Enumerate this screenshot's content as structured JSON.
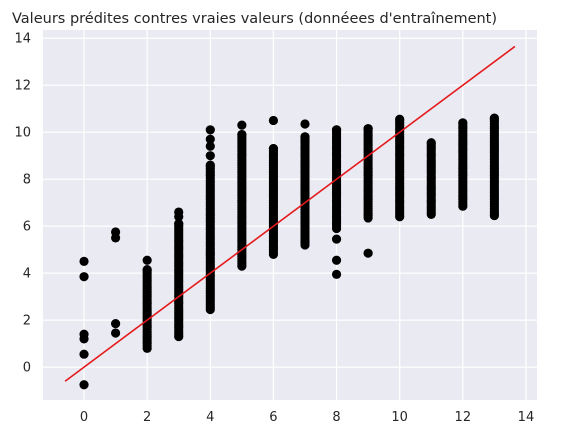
{
  "chart_data": {
    "type": "scatter",
    "title": "Valeurs prédites contres vraies valeurs (donnéees d'entraînement)",
    "xlabel": "",
    "ylabel": "",
    "xlim": [
      -1.3,
      14.35
    ],
    "ylim": [
      -1.4,
      14.35
    ],
    "xticks": [
      0,
      2,
      4,
      6,
      8,
      10,
      12,
      14
    ],
    "yticks": [
      0,
      2,
      4,
      6,
      8,
      10,
      12,
      14
    ],
    "grid": true,
    "colors": {
      "background": "#eaeaf2",
      "grid": "#ffffff",
      "points": "#000000",
      "line": "#e41a1c",
      "text": "#262626"
    },
    "series": [
      {
        "type": "scatter",
        "points": [
          {
            "x": 0,
            "y": -0.75
          },
          {
            "x": 0,
            "y": 0.55
          },
          {
            "x": 0,
            "y": 1.2
          },
          {
            "x": 0,
            "y": 1.4
          },
          {
            "x": 0,
            "y": 3.85
          },
          {
            "x": 0,
            "y": 4.5
          },
          {
            "x": 1,
            "y": 1.45
          },
          {
            "x": 1,
            "y": 1.85
          },
          {
            "x": 1,
            "y": 5.5
          },
          {
            "x": 1,
            "y": 5.75
          }
        ],
        "columns": [
          {
            "x": 2,
            "min": 0.8,
            "max": 4.15,
            "extra": [
              4.55
            ]
          },
          {
            "x": 3,
            "min": 1.3,
            "max": 6.1,
            "extra": [
              6.4,
              6.6
            ]
          },
          {
            "x": 4,
            "min": 2.45,
            "max": 8.6,
            "extra": [
              9.0,
              9.4,
              9.7,
              10.1
            ]
          },
          {
            "x": 5,
            "min": 4.3,
            "max": 9.9,
            "extra": [
              10.3
            ]
          },
          {
            "x": 6,
            "min": 4.8,
            "max": 9.3,
            "extra": [
              10.5
            ]
          },
          {
            "x": 7,
            "min": 5.2,
            "max": 9.8,
            "extra": [
              10.35
            ]
          },
          {
            "x": 8,
            "min": 5.9,
            "max": 10.1,
            "extra": [
              3.95,
              4.55,
              5.45
            ]
          },
          {
            "x": 9,
            "min": 6.35,
            "max": 10.15,
            "extra": [
              4.85
            ]
          },
          {
            "x": 10,
            "min": 6.4,
            "max": 10.55,
            "extra": []
          },
          {
            "x": 11,
            "min": 6.5,
            "max": 9.55,
            "extra": []
          },
          {
            "x": 12,
            "min": 6.85,
            "max": 10.4,
            "extra": []
          },
          {
            "x": 13,
            "min": 6.45,
            "max": 10.6,
            "extra": []
          }
        ]
      },
      {
        "type": "line",
        "name": "",
        "x": [
          -0.6,
          13.65
        ],
        "y": [
          -0.6,
          13.65
        ]
      }
    ]
  }
}
